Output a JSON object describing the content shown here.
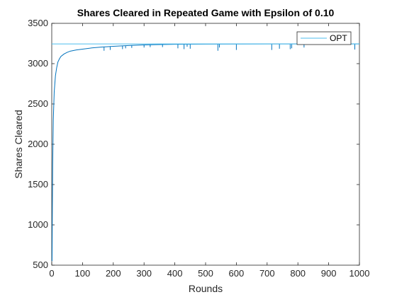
{
  "chart_data": {
    "type": "line",
    "title": "Shares Cleared in Repeated Game with Epsilon of 0.10",
    "xlabel": "Rounds",
    "ylabel": "Shares Cleared",
    "xlim": [
      0,
      1000
    ],
    "ylim": [
      500,
      3500
    ],
    "xticks": [
      0,
      100,
      200,
      300,
      400,
      500,
      600,
      700,
      800,
      900,
      1000
    ],
    "yticks": [
      500,
      1000,
      1500,
      2000,
      2500,
      3000,
      3500
    ],
    "grid": false,
    "legend_position": "top-right",
    "series": [
      {
        "name": "",
        "color": "#0072BD",
        "x": [
          1,
          2,
          3,
          5,
          8,
          12,
          16,
          20,
          25,
          30,
          40,
          50,
          60,
          80,
          100,
          130,
          160,
          200,
          250,
          300,
          350,
          400,
          500,
          600,
          700,
          800,
          900,
          1000
        ],
        "y": [
          550,
          1200,
          1750,
          2300,
          2650,
          2850,
          2950,
          3020,
          3060,
          3090,
          3120,
          3140,
          3155,
          3170,
          3180,
          3195,
          3205,
          3215,
          3225,
          3232,
          3237,
          3240,
          3242,
          3243,
          3244,
          3244,
          3245,
          3245
        ],
        "dips": [
          {
            "x": 170,
            "y": 3160
          },
          {
            "x": 190,
            "y": 3170
          },
          {
            "x": 230,
            "y": 3180
          },
          {
            "x": 240,
            "y": 3190
          },
          {
            "x": 260,
            "y": 3195
          },
          {
            "x": 300,
            "y": 3200
          },
          {
            "x": 320,
            "y": 3205
          },
          {
            "x": 360,
            "y": 3205
          },
          {
            "x": 410,
            "y": 3190
          },
          {
            "x": 430,
            "y": 3180
          },
          {
            "x": 440,
            "y": 3210
          },
          {
            "x": 450,
            "y": 3185
          },
          {
            "x": 540,
            "y": 3160
          },
          {
            "x": 545,
            "y": 3200
          },
          {
            "x": 600,
            "y": 3170
          },
          {
            "x": 715,
            "y": 3170
          },
          {
            "x": 740,
            "y": 3185
          },
          {
            "x": 775,
            "y": 3180
          },
          {
            "x": 780,
            "y": 3190
          },
          {
            "x": 820,
            "y": 3200
          },
          {
            "x": 985,
            "y": 3175
          }
        ]
      },
      {
        "name": "OPT",
        "color": "#4DBEEE",
        "x": [
          0,
          1000
        ],
        "y": [
          3245,
          3245
        ]
      }
    ]
  }
}
